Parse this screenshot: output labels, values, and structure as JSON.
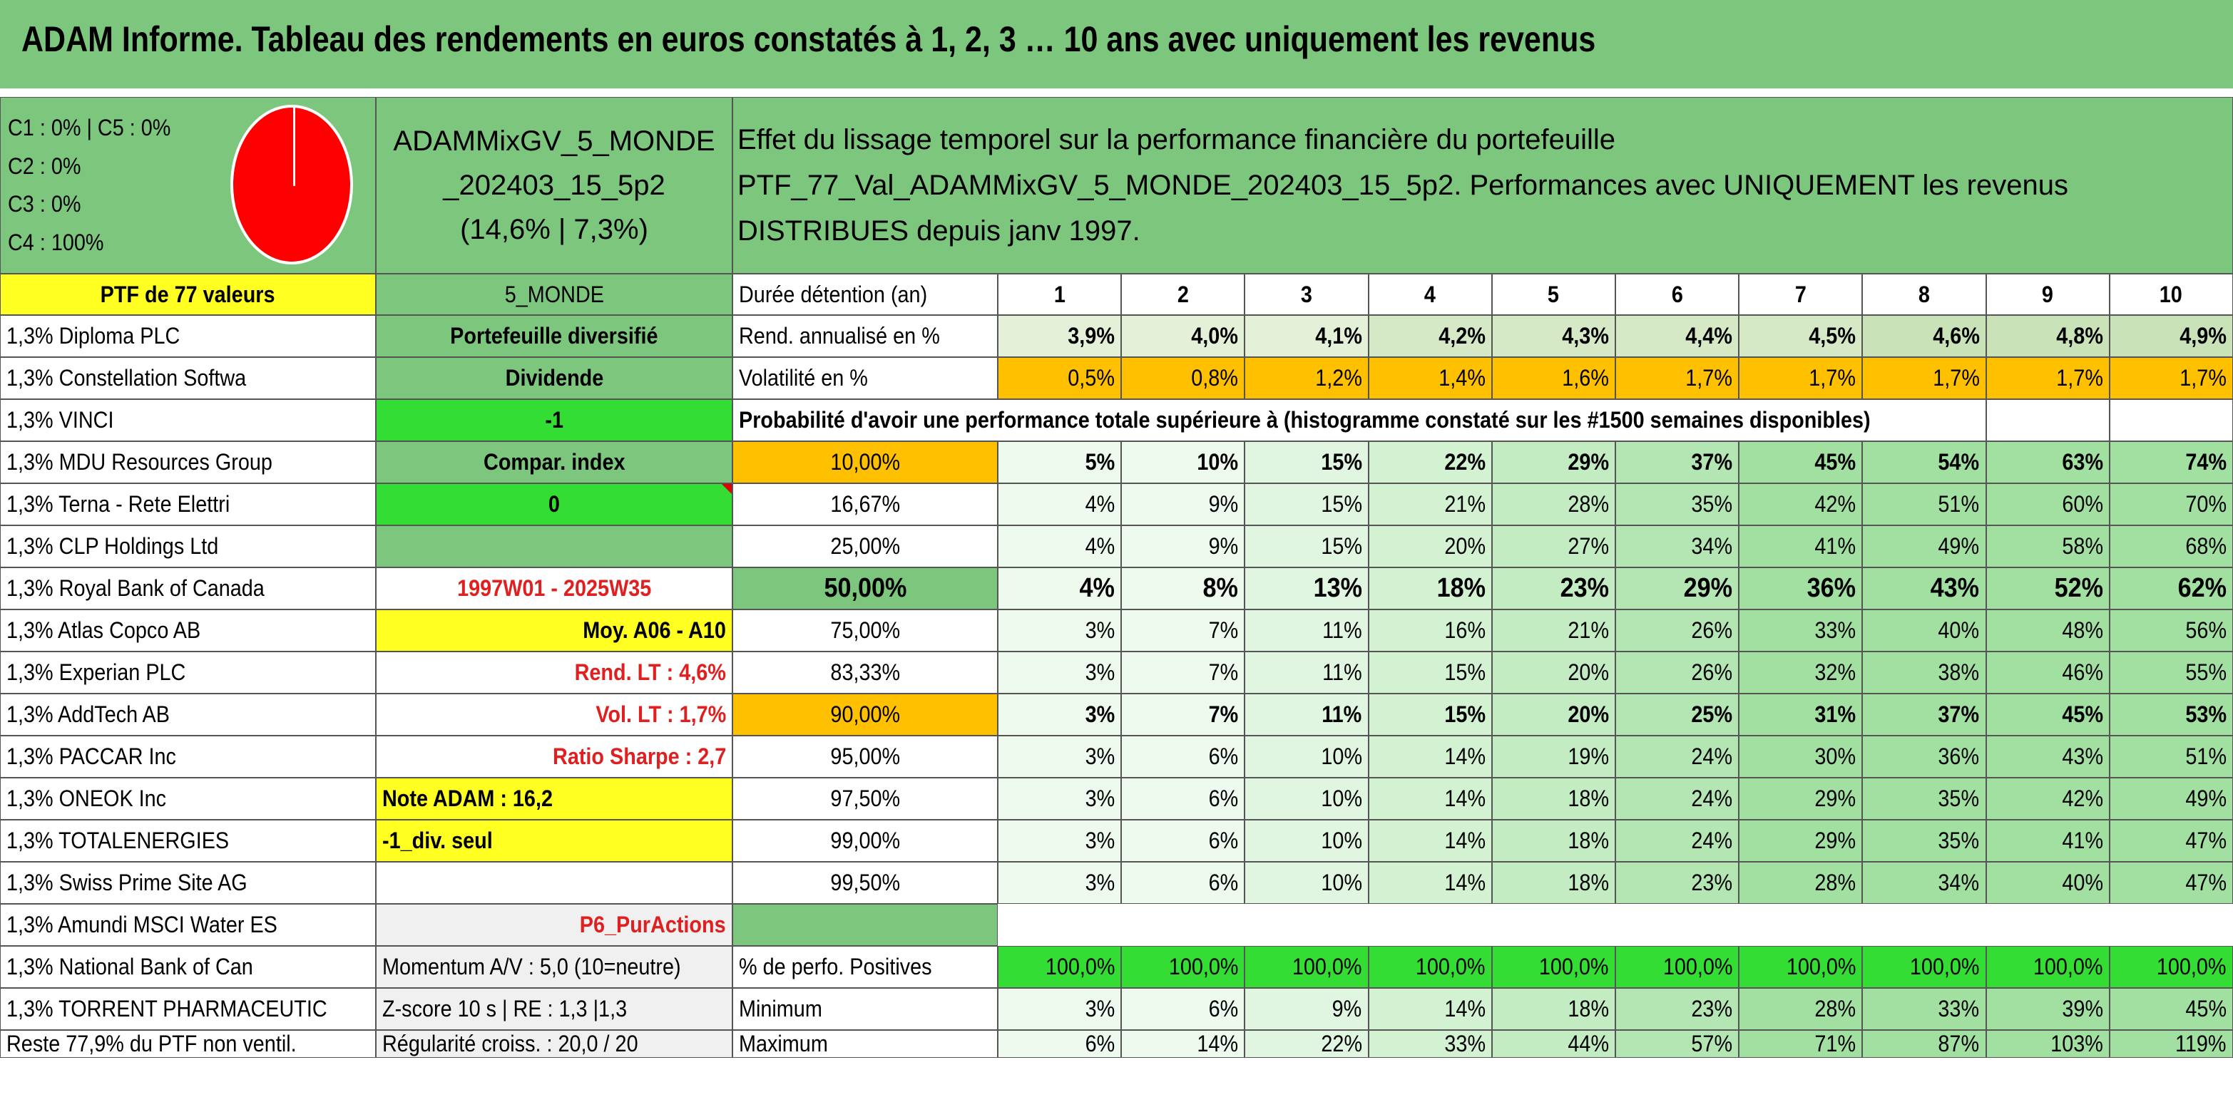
{
  "title": "ADAM Informe. Tableau des rendements en euros constatés à 1, 2, 3 … 10 ans avec uniquement les revenus",
  "info": {
    "lines": [
      "C1 : 0% | C5 : 0%",
      "C2 : 0%",
      "C3 : 0%",
      "C4 : 100%"
    ],
    "pie_color": "#ff0000"
  },
  "portfolio_code": "ADAMMixGV_5_MONDE_202403_15_5p2",
  "portfolio_stats": "(14,6% | 7,3%)",
  "description_title": "Effet du lissage temporel sur la performance financière du portefeuille",
  "description_body": "PTF_77_Val_ADAMMixGV_5_MONDE_202403_15_5p2. Performances avec UNIQUEMENT les revenus DISTRIBUES depuis janv 1997.",
  "ptf_header": "PTF de 77 valeurs",
  "holdings": [
    "1,3% Diploma PLC",
    "1,3% Constellation Softwa",
    "1,3% VINCI",
    "1,3% MDU Resources Group",
    "1,3% Terna - Rete Elettri",
    "1,3% CLP Holdings Ltd",
    "1,3% Royal Bank of Canada",
    "1,3% Atlas Copco AB",
    "1,3% Experian PLC",
    "1,3% AddTech AB",
    "1,3% PACCAR Inc",
    "1,3% ONEOK Inc",
    "1,3% TOTALENERGIES",
    "1,3% Swiss Prime Site AG",
    "1,3% Amundi MSCI Water ES",
    "1,3% National Bank of Can",
    "1,3% TORRENT PHARMACEUTIC",
    "Reste 77,9% du PTF non ventil."
  ],
  "side": {
    "zone": "5_MONDE",
    "type": "Portefeuille diversifié",
    "dividend_label": "Dividende",
    "dividend_value": "-1",
    "compar_label": "Compar. index",
    "compar_value": "0",
    "period": "1997W01 - 2025W35",
    "moy": "Moy. A06 - A10",
    "rend_lt": "Rend. LT : 4,6%",
    "vol_lt": "Vol. LT : 1,7%",
    "sharpe": "Ratio Sharpe : 2,7",
    "note": "Note ADAM : 16,2",
    "div_seul": "-1_div. seul",
    "p6": "P6_PurActions",
    "momentum": "Momentum A/V : 5,0 (10=neutre)",
    "zscore": "Z-score 10 s | RE : 1,3 |1,3",
    "regularite": "Régularité croiss. : 20,0 / 20"
  },
  "table": {
    "duration_label": "Durée détention (an)",
    "years": [
      "1",
      "2",
      "3",
      "4",
      "5",
      "6",
      "7",
      "8",
      "9",
      "10"
    ],
    "rend_label": "Rend. annualisé en %",
    "rend": [
      "3,9%",
      "4,0%",
      "4,1%",
      "4,2%",
      "4,3%",
      "4,4%",
      "4,5%",
      "4,6%",
      "4,8%",
      "4,9%"
    ],
    "vol_label": "Volatilité en %",
    "vol": [
      "0,5%",
      "0,8%",
      "1,2%",
      "1,4%",
      "1,6%",
      "1,7%",
      "1,7%",
      "1,7%",
      "1,7%",
      "1,7%"
    ],
    "prob_label": "Probabilité d'avoir une performance totale supérieure à (histogramme constaté sur les #1500 semaines disponibles)",
    "prob_rows": [
      {
        "p": "10,00%",
        "v": [
          "5%",
          "10%",
          "15%",
          "22%",
          "29%",
          "37%",
          "45%",
          "54%",
          "63%",
          "74%"
        ]
      },
      {
        "p": "16,67%",
        "v": [
          "4%",
          "9%",
          "15%",
          "21%",
          "28%",
          "35%",
          "42%",
          "51%",
          "60%",
          "70%"
        ]
      },
      {
        "p": "25,00%",
        "v": [
          "4%",
          "9%",
          "15%",
          "20%",
          "27%",
          "34%",
          "41%",
          "49%",
          "58%",
          "68%"
        ]
      },
      {
        "p": "50,00%",
        "v": [
          "4%",
          "8%",
          "13%",
          "18%",
          "23%",
          "29%",
          "36%",
          "43%",
          "52%",
          "62%"
        ]
      },
      {
        "p": "75,00%",
        "v": [
          "3%",
          "7%",
          "11%",
          "16%",
          "21%",
          "26%",
          "33%",
          "40%",
          "48%",
          "56%"
        ]
      },
      {
        "p": "83,33%",
        "v": [
          "3%",
          "7%",
          "11%",
          "15%",
          "20%",
          "26%",
          "32%",
          "38%",
          "46%",
          "55%"
        ]
      },
      {
        "p": "90,00%",
        "v": [
          "3%",
          "7%",
          "11%",
          "15%",
          "20%",
          "25%",
          "31%",
          "37%",
          "45%",
          "53%"
        ]
      },
      {
        "p": "95,00%",
        "v": [
          "3%",
          "6%",
          "10%",
          "14%",
          "19%",
          "24%",
          "30%",
          "36%",
          "43%",
          "51%"
        ]
      },
      {
        "p": "97,50%",
        "v": [
          "3%",
          "6%",
          "10%",
          "14%",
          "18%",
          "24%",
          "29%",
          "35%",
          "42%",
          "49%"
        ]
      },
      {
        "p": "99,00%",
        "v": [
          "3%",
          "6%",
          "10%",
          "14%",
          "18%",
          "24%",
          "29%",
          "35%",
          "41%",
          "47%"
        ]
      },
      {
        "p": "99,50%",
        "v": [
          "3%",
          "6%",
          "10%",
          "14%",
          "18%",
          "23%",
          "28%",
          "34%",
          "40%",
          "47%"
        ]
      }
    ],
    "pos_label": "% de perfo. Positives",
    "pos": [
      "100,0%",
      "100,0%",
      "100,0%",
      "100,0%",
      "100,0%",
      "100,0%",
      "100,0%",
      "100,0%",
      "100,0%",
      "100,0%"
    ],
    "min_label": "Minimum",
    "min": [
      "3%",
      "6%",
      "9%",
      "14%",
      "18%",
      "23%",
      "28%",
      "33%",
      "39%",
      "45%"
    ],
    "max_label": "Maximum",
    "max": [
      "6%",
      "14%",
      "22%",
      "33%",
      "44%",
      "57%",
      "71%",
      "87%",
      "103%",
      "119%"
    ]
  },
  "colors": {
    "header_green": "#7dc67d",
    "bright_green": "#33dd33",
    "yellow": "#ffff22",
    "orange": "#ffc000",
    "red_text": "#e02020"
  }
}
